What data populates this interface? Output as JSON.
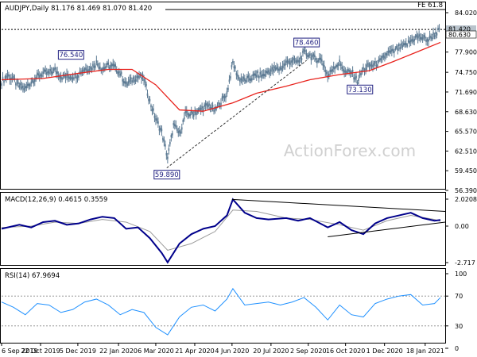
{
  "chart_data": [
    {
      "type": "candlestick",
      "title": "AUDJPY,Daily 81.176 81.469 81.070 81.420",
      "watermark": "ActionForex.com",
      "ylim": [
        56.39,
        86.0
      ],
      "y_ticks": [
        "84.020",
        "77.900",
        "74.750",
        "71.690",
        "68.630",
        "65.570",
        "62.510",
        "59.450",
        "56.390"
      ],
      "price_tags": [
        {
          "text": "81.420",
          "value": 81.42,
          "color": "#b9c3cc"
        },
        {
          "text": "80.630",
          "value": 80.63,
          "color": "#ffffff"
        }
      ],
      "fib_label": "FE 61.8",
      "fib_level": 85.0,
      "resistance_level": 81.42,
      "annotations": [
        {
          "text": "76.540",
          "x": "2019-11-27",
          "y": 76.54
        },
        {
          "text": "59.890",
          "x": "2020-03-19",
          "y": 59.89
        },
        {
          "text": "78.460",
          "x": "2020-08-31",
          "y": 78.46
        },
        {
          "text": "73.130",
          "x": "2020-11-02",
          "y": 73.13
        }
      ],
      "trend_line": {
        "from": {
          "x": "2020-03-19",
          "y": 59.89
        },
        "to": {
          "x": "2020-08-31",
          "y": 76.6
        }
      },
      "close_series": [
        [
          "2019-09-06",
          73.3
        ],
        [
          "2019-09-13",
          74.3
        ],
        [
          "2019-09-20",
          73.6
        ],
        [
          "2019-09-27",
          72.6
        ],
        [
          "2019-10-04",
          72.2
        ],
        [
          "2019-10-11",
          73.3
        ],
        [
          "2019-10-18",
          74.1
        ],
        [
          "2019-10-25",
          74.6
        ],
        [
          "2019-11-01",
          74.6
        ],
        [
          "2019-11-08",
          75.1
        ],
        [
          "2019-11-15",
          74.1
        ],
        [
          "2019-11-22",
          74.1
        ],
        [
          "2019-11-29",
          74.1
        ],
        [
          "2019-12-06",
          74.5
        ],
        [
          "2019-12-13",
          75.3
        ],
        [
          "2019-12-20",
          75.4
        ],
        [
          "2019-12-27",
          76.2
        ],
        [
          "2020-01-03",
          75.3
        ],
        [
          "2020-01-10",
          75.8
        ],
        [
          "2020-01-17",
          75.6
        ],
        [
          "2020-01-24",
          74.6
        ],
        [
          "2020-01-31",
          72.8
        ],
        [
          "2020-02-07",
          73.6
        ],
        [
          "2020-02-14",
          74.1
        ],
        [
          "2020-02-21",
          73.8
        ],
        [
          "2020-02-28",
          70.2
        ],
        [
          "2020-03-06",
          67.5
        ],
        [
          "2020-03-13",
          65.5
        ],
        [
          "2020-03-20",
          61.5
        ],
        [
          "2020-03-27",
          66.5
        ],
        [
          "2020-04-03",
          65.2
        ],
        [
          "2020-04-10",
          68.2
        ],
        [
          "2020-04-17",
          68.3
        ],
        [
          "2020-04-24",
          68.6
        ],
        [
          "2020-05-01",
          69.3
        ],
        [
          "2020-05-08",
          69.6
        ],
        [
          "2020-05-15",
          68.8
        ],
        [
          "2020-05-22",
          70.2
        ],
        [
          "2020-05-29",
          71.5
        ],
        [
          "2020-06-05",
          76.2
        ],
        [
          "2020-06-12",
          73.8
        ],
        [
          "2020-06-19",
          73.5
        ],
        [
          "2020-06-26",
          73.8
        ],
        [
          "2020-07-03",
          74.4
        ],
        [
          "2020-07-10",
          74.2
        ],
        [
          "2020-07-17",
          74.9
        ],
        [
          "2020-07-24",
          75.2
        ],
        [
          "2020-07-31",
          75.3
        ],
        [
          "2020-08-07",
          76.2
        ],
        [
          "2020-08-14",
          76.6
        ],
        [
          "2020-08-21",
          76.3
        ],
        [
          "2020-08-28",
          77.8
        ],
        [
          "2020-09-04",
          77.4
        ],
        [
          "2020-09-11",
          76.8
        ],
        [
          "2020-09-18",
          76.7
        ],
        [
          "2020-09-25",
          74.1
        ],
        [
          "2020-10-02",
          75.6
        ],
        [
          "2020-10-09",
          76.2
        ],
        [
          "2020-10-16",
          74.7
        ],
        [
          "2020-10-23",
          74.8
        ],
        [
          "2020-10-30",
          73.4
        ],
        [
          "2020-11-06",
          75.2
        ],
        [
          "2020-11-13",
          75.8
        ],
        [
          "2020-11-20",
          75.9
        ],
        [
          "2020-11-27",
          76.5
        ],
        [
          "2020-12-04",
          77.7
        ],
        [
          "2020-12-11",
          77.9
        ],
        [
          "2020-12-18",
          78.6
        ],
        [
          "2020-12-25",
          78.8
        ],
        [
          "2021-01-01",
          79.6
        ],
        [
          "2021-01-08",
          80.3
        ],
        [
          "2021-01-15",
          80.1
        ],
        [
          "2021-01-22",
          79.8
        ],
        [
          "2021-01-29",
          80.7
        ],
        [
          "2021-02-05",
          81.42
        ]
      ],
      "ma_series": [
        [
          "2019-09-06",
          73.6
        ],
        [
          "2019-10-25",
          73.8
        ],
        [
          "2019-12-06",
          74.6
        ],
        [
          "2020-01-10",
          75.2
        ],
        [
          "2020-02-07",
          75.2
        ],
        [
          "2020-03-06",
          72.8
        ],
        [
          "2020-04-03",
          68.9
        ],
        [
          "2020-05-01",
          68.7
        ],
        [
          "2020-06-05",
          70.0
        ],
        [
          "2020-07-03",
          71.5
        ],
        [
          "2020-08-07",
          72.6
        ],
        [
          "2020-09-04",
          73.6
        ],
        [
          "2020-10-09",
          74.4
        ],
        [
          "2020-11-13",
          75.0
        ],
        [
          "2020-12-11",
          76.4
        ],
        [
          "2021-01-08",
          77.9
        ],
        [
          "2021-02-05",
          79.4
        ]
      ]
    },
    {
      "type": "line",
      "title": "MACD(12,26,9) 0.4615 0.3559",
      "ylim": [
        -3.2,
        2.4
      ],
      "y_ticks": [
        "2.0208",
        "0.00",
        "-2.717"
      ],
      "series": [
        {
          "color": "#00008b",
          "values": [
            [
              "2019-09-06",
              -0.2
            ],
            [
              "2019-09-27",
              0.1
            ],
            [
              "2019-10-11",
              -0.1
            ],
            [
              "2019-10-25",
              0.3
            ],
            [
              "2019-11-08",
              0.4
            ],
            [
              "2019-11-22",
              0.1
            ],
            [
              "2019-12-06",
              0.2
            ],
            [
              "2019-12-20",
              0.5
            ],
            [
              "2020-01-03",
              0.7
            ],
            [
              "2020-01-17",
              0.6
            ],
            [
              "2020-01-31",
              -0.2
            ],
            [
              "2020-02-14",
              -0.1
            ],
            [
              "2020-02-28",
              -0.9
            ],
            [
              "2020-03-13",
              -2.0
            ],
            [
              "2020-03-20",
              -2.7
            ],
            [
              "2020-04-03",
              -1.3
            ],
            [
              "2020-04-17",
              -0.6
            ],
            [
              "2020-05-01",
              -0.2
            ],
            [
              "2020-05-15",
              0.0
            ],
            [
              "2020-05-29",
              0.8
            ],
            [
              "2020-06-05",
              2.0
            ],
            [
              "2020-06-19",
              1.0
            ],
            [
              "2020-07-03",
              0.6
            ],
            [
              "2020-07-17",
              0.5
            ],
            [
              "2020-08-07",
              0.6
            ],
            [
              "2020-08-21",
              0.4
            ],
            [
              "2020-09-04",
              0.6
            ],
            [
              "2020-09-25",
              -0.1
            ],
            [
              "2020-10-09",
              0.3
            ],
            [
              "2020-10-23",
              -0.3
            ],
            [
              "2020-11-06",
              -0.6
            ],
            [
              "2020-11-20",
              0.2
            ],
            [
              "2020-12-04",
              0.6
            ],
            [
              "2020-12-18",
              0.8
            ],
            [
              "2021-01-01",
              1.0
            ],
            [
              "2021-01-15",
              0.6
            ],
            [
              "2021-01-29",
              0.4
            ],
            [
              "2021-02-05",
              0.46
            ]
          ]
        },
        {
          "color": "#9a9a9a",
          "values": [
            [
              "2019-09-06",
              -0.1
            ],
            [
              "2019-10-11",
              0.0
            ],
            [
              "2019-11-08",
              0.3
            ],
            [
              "2019-12-06",
              0.2
            ],
            [
              "2020-01-03",
              0.5
            ],
            [
              "2020-01-31",
              0.3
            ],
            [
              "2020-02-28",
              -0.4
            ],
            [
              "2020-03-20",
              -1.8
            ],
            [
              "2020-04-17",
              -1.3
            ],
            [
              "2020-05-15",
              -0.4
            ],
            [
              "2020-06-05",
              1.2
            ],
            [
              "2020-07-03",
              1.1
            ],
            [
              "2020-08-07",
              0.6
            ],
            [
              "2020-09-04",
              0.5
            ],
            [
              "2020-10-09",
              0.1
            ],
            [
              "2020-11-06",
              -0.3
            ],
            [
              "2020-12-04",
              0.4
            ],
            [
              "2021-01-01",
              0.8
            ],
            [
              "2021-01-29",
              0.5
            ],
            [
              "2021-02-05",
              0.36
            ]
          ]
        }
      ]
    },
    {
      "type": "line",
      "title": "RSI(14) 67.9694",
      "ylim": [
        0,
        100
      ],
      "y_ticks": [
        "100",
        "70",
        "30",
        "0"
      ],
      "levels": [
        70,
        30
      ],
      "series": [
        {
          "color": "#1e90ff",
          "values": [
            [
              "2019-09-06",
              62
            ],
            [
              "2019-09-20",
              55
            ],
            [
              "2019-10-04",
              45
            ],
            [
              "2019-10-18",
              60
            ],
            [
              "2019-11-01",
              58
            ],
            [
              "2019-11-15",
              48
            ],
            [
              "2019-11-29",
              52
            ],
            [
              "2019-12-13",
              62
            ],
            [
              "2019-12-27",
              66
            ],
            [
              "2020-01-10",
              58
            ],
            [
              "2020-01-24",
              45
            ],
            [
              "2020-02-07",
              52
            ],
            [
              "2020-02-21",
              48
            ],
            [
              "2020-03-06",
              28
            ],
            [
              "2020-03-20",
              18
            ],
            [
              "2020-04-03",
              42
            ],
            [
              "2020-04-17",
              55
            ],
            [
              "2020-05-01",
              58
            ],
            [
              "2020-05-15",
              50
            ],
            [
              "2020-05-29",
              66
            ],
            [
              "2020-06-05",
              80
            ],
            [
              "2020-06-19",
              58
            ],
            [
              "2020-07-03",
              60
            ],
            [
              "2020-07-17",
              62
            ],
            [
              "2020-07-31",
              58
            ],
            [
              "2020-08-14",
              62
            ],
            [
              "2020-08-28",
              68
            ],
            [
              "2020-09-11",
              55
            ],
            [
              "2020-09-25",
              38
            ],
            [
              "2020-10-09",
              58
            ],
            [
              "2020-10-23",
              45
            ],
            [
              "2020-11-06",
              42
            ],
            [
              "2020-11-20",
              60
            ],
            [
              "2020-12-04",
              66
            ],
            [
              "2020-12-18",
              70
            ],
            [
              "2021-01-01",
              72
            ],
            [
              "2021-01-15",
              58
            ],
            [
              "2021-01-29",
              60
            ],
            [
              "2021-02-05",
              68
            ]
          ]
        }
      ]
    }
  ],
  "x_axis": {
    "range": [
      "2019-09-06",
      "2021-02-05"
    ],
    "ticks": [
      [
        "2019-09-06",
        "6 Sep 2019"
      ],
      [
        "2019-10-22",
        "22 Oct 2019"
      ],
      [
        "2019-12-05",
        "5 Dec 2019"
      ],
      [
        "2020-01-22",
        "22 Jan 2020"
      ],
      [
        "2020-03-06",
        "6 Mar 2020"
      ],
      [
        "2020-04-21",
        "21 Apr 2020"
      ],
      [
        "2020-06-04",
        "4 Jun 2020"
      ],
      [
        "2020-07-20",
        "20 Jul 2020"
      ],
      [
        "2020-09-02",
        "2 Sep 2020"
      ],
      [
        "2020-10-16",
        "16 Oct 2020"
      ],
      [
        "2020-12-01",
        "1 Dec 2020"
      ],
      [
        "2021-01-18",
        "18 Jan 2021"
      ]
    ]
  },
  "colors": {
    "candle": "#5c7a93",
    "ma": "#e8221c",
    "macd": "#00008b",
    "signal": "#9a9a9a",
    "rsi": "#1e90ff",
    "box_border": "#1f1f80"
  }
}
